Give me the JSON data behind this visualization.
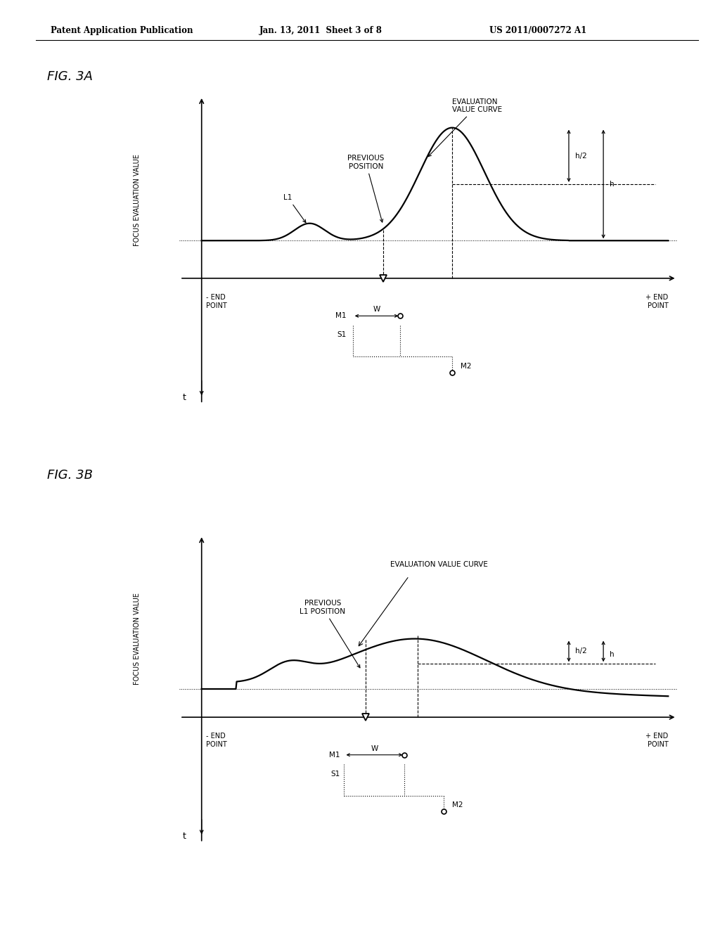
{
  "bg_color": "#ffffff",
  "header_left": "Patent Application Publication",
  "header_center": "Jan. 13, 2011  Sheet 3 of 8",
  "header_right": "US 2011/0007272 A1",
  "fig3a_title": "FIG. 3A",
  "fig3b_title": "FIG. 3B",
  "ylabel": "FOCUS EVALUATION VALUE",
  "xlabel_minus": "- END\nPOINT",
  "xlabel_plus": "+ END\nPOINT",
  "t_label": "t",
  "annotations_3a": {
    "eval_curve": "EVALUATION\nVALUE CURVE",
    "prev_pos": "PREVIOUS\nPOSITION",
    "L1": "L1",
    "h_half": "h/2",
    "h": "h",
    "M1": "M1",
    "M2": "M2",
    "W": "W",
    "S1": "S1"
  },
  "annotations_3b": {
    "eval_curve": "EVALUATION VALUE CURVE",
    "prev_pos": "PREVIOUS\nL1 POSITION",
    "h_half": "h/2",
    "h": "h",
    "M1": "M1",
    "M2": "M2",
    "W": "W",
    "S1": "S1"
  }
}
